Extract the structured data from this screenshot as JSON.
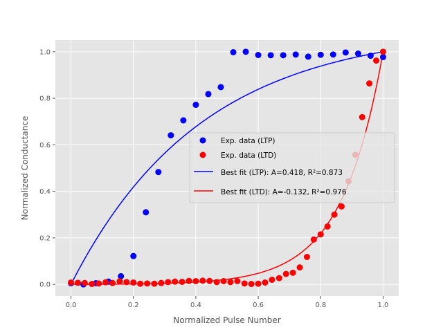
{
  "chart_data": {
    "type": "scatter",
    "xlabel": "Normalized Pulse Number",
    "ylabel": "Normalized Conductance",
    "xlim": [
      -0.05,
      1.05
    ],
    "ylim": [
      -0.05,
      1.05
    ],
    "xticks": [
      0.0,
      0.2,
      0.4,
      0.6,
      0.8,
      1.0
    ],
    "yticks": [
      0.0,
      0.2,
      0.4,
      0.6,
      0.8,
      1.0
    ],
    "xtick_labels": [
      "0.0",
      "0.2",
      "0.4",
      "0.6",
      "0.8",
      "1.0"
    ],
    "ytick_labels": [
      "0.0",
      "0.2",
      "0.4",
      "0.6",
      "0.8",
      "1.0"
    ],
    "grid": true,
    "legend_position": "center-right",
    "scatter_series": [
      {
        "name": "Exp. data (LTP)",
        "color": "#0000ff",
        "x": [
          0.0,
          0.04,
          0.08,
          0.12,
          0.16,
          0.2,
          0.24,
          0.28,
          0.32,
          0.36,
          0.4,
          0.44,
          0.48,
          0.52,
          0.56,
          0.6,
          0.64,
          0.68,
          0.72,
          0.76,
          0.8,
          0.84,
          0.88,
          0.92,
          0.96,
          1.0
        ],
        "y": [
          0.005,
          0.0,
          0.005,
          0.012,
          0.035,
          0.122,
          0.31,
          0.483,
          0.641,
          0.705,
          0.772,
          0.818,
          0.848,
          0.998,
          1.0,
          0.986,
          0.985,
          0.985,
          0.988,
          0.979,
          0.987,
          0.988,
          0.997,
          0.992,
          0.983,
          0.977
        ]
      },
      {
        "name": "Exp. data (LTD)",
        "color": "#ff0000",
        "x": [
          0.0,
          0.022,
          0.044,
          0.067,
          0.089,
          0.111,
          0.133,
          0.156,
          0.178,
          0.2,
          0.222,
          0.244,
          0.267,
          0.289,
          0.311,
          0.333,
          0.356,
          0.378,
          0.4,
          0.422,
          0.444,
          0.467,
          0.489,
          0.511,
          0.533,
          0.556,
          0.578,
          0.6,
          0.622,
          0.644,
          0.667,
          0.689,
          0.711,
          0.733,
          0.756,
          0.778,
          0.8,
          0.822,
          0.844,
          0.867,
          0.889,
          0.911,
          0.933,
          0.956,
          0.978,
          1.0
        ],
        "y": [
          0.008,
          0.007,
          0.006,
          0.002,
          0.004,
          0.009,
          0.006,
          0.013,
          0.01,
          0.008,
          0.003,
          0.004,
          0.003,
          0.006,
          0.01,
          0.012,
          0.011,
          0.015,
          0.014,
          0.016,
          0.015,
          0.01,
          0.014,
          0.01,
          0.014,
          0.004,
          0.002,
          0.003,
          0.008,
          0.02,
          0.027,
          0.045,
          0.05,
          0.073,
          0.118,
          0.193,
          0.215,
          0.249,
          0.3,
          0.335,
          0.443,
          0.557,
          0.719,
          0.864,
          0.962,
          1.0
        ]
      }
    ],
    "line_series": [
      {
        "name": "Best fit (LTP): A=0.418, R²=0.873",
        "color": "#0000ff",
        "A": 0.418,
        "type": "ltp"
      },
      {
        "name": "Best fit (LTD): A=-0.132, R²=0.976",
        "color": "#ff0000",
        "A": -0.132,
        "type": "ltd"
      }
    ]
  }
}
